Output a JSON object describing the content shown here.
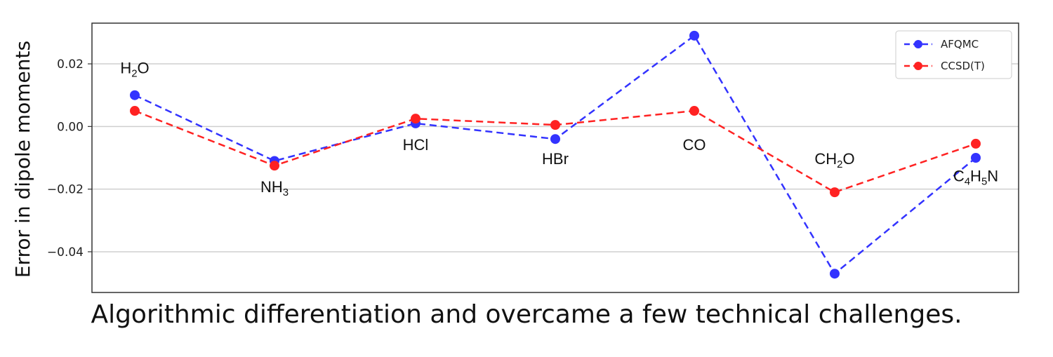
{
  "chart_data": {
    "type": "line",
    "title": "",
    "xlabel": "",
    "ylabel": "Error in dipole moments",
    "categories": [
      "H2O",
      "NH3",
      "HCl",
      "HBr",
      "CO",
      "CH2O",
      "C4H5N"
    ],
    "ylim": [
      -0.053,
      0.033
    ],
    "yticks": [
      0.02,
      0.0,
      -0.02,
      -0.04
    ],
    "ytick_labels": [
      "0.02",
      "0.00",
      "−0.02",
      "−0.04"
    ],
    "grid": "horizontal",
    "legend_position": "top-right",
    "series": [
      {
        "name": "AFQMC",
        "color": "#3333ff",
        "values": [
          0.01,
          -0.011,
          0.001,
          -0.004,
          0.029,
          -0.047,
          -0.01
        ]
      },
      {
        "name": "CCSD(T)",
        "color": "#ff2222",
        "values": [
          0.005,
          -0.0125,
          0.0025,
          0.0005,
          0.005,
          -0.021,
          -0.0055
        ]
      }
    ],
    "annotations": [
      {
        "label": "H",
        "sub": "2",
        "rest": "O",
        "x_index": 0,
        "y": 0.017
      },
      {
        "label": "NH",
        "sub": "3",
        "rest": "",
        "x_index": 1,
        "y": -0.021
      },
      {
        "label": "HCl",
        "sub": "",
        "rest": "",
        "x_index": 2,
        "y": -0.0075
      },
      {
        "label": "HBr",
        "sub": "",
        "rest": "",
        "x_index": 3,
        "y": -0.012
      },
      {
        "label": "CO",
        "sub": "",
        "rest": "",
        "x_index": 4,
        "y": -0.0075
      },
      {
        "label": "CH",
        "sub": "2",
        "rest": "O",
        "x_index": 5,
        "y": -0.012
      },
      {
        "label": "C",
        "sub": "4",
        "rest": "H₅N",
        "x_index": 6,
        "y": -0.0175
      }
    ]
  },
  "caption": "Algorithmic differentiation and overcame a few technical challenges."
}
